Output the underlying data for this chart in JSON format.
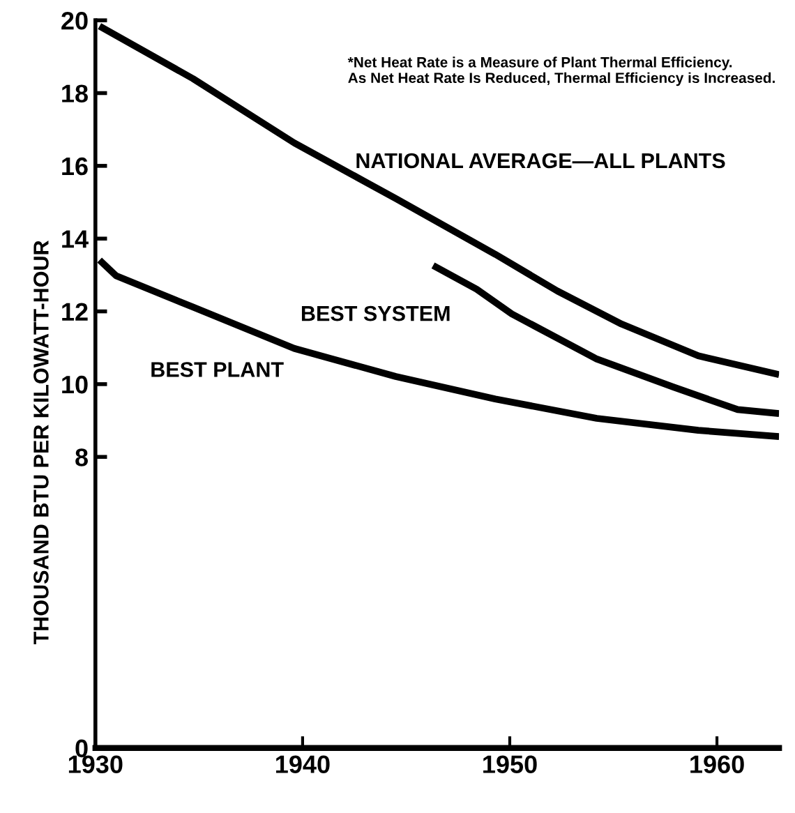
{
  "chart_data": {
    "type": "line",
    "ylabel": "THOUSAND BTU PER KILOWATT-HOUR",
    "annotations": [
      "*Net Heat Rate is a Measure of Plant Thermal Efficiency.\nAs Net Heat Rate Is Reduced, Thermal Efficiency is Increased."
    ],
    "series": [
      {
        "name": "NATIONAL AVERAGE—ALL PLANTS",
        "color": "#000000",
        "x": [
          1930.2,
          1934.7,
          1939.6,
          1944.5,
          1949.3,
          1952.3,
          1955.4,
          1959.1,
          1963.0
        ],
        "values": [
          19.84,
          18.4,
          16.63,
          15.1,
          13.57,
          12.56,
          11.65,
          10.78,
          10.26
        ]
      },
      {
        "name": "BEST SYSTEM",
        "color": "#000000",
        "x": [
          1946.3,
          1948.4,
          1950.1,
          1954.2,
          1957.9,
          1961.0,
          1963.0
        ],
        "values": [
          13.26,
          12.61,
          11.93,
          10.69,
          9.92,
          9.3,
          9.19
        ]
      },
      {
        "name": "BEST PLANT",
        "color": "#000000",
        "x": [
          1930.2,
          1931.0,
          1934.7,
          1939.6,
          1944.5,
          1949.3,
          1954.2,
          1959.1,
          1963.0
        ],
        "values": [
          13.41,
          12.98,
          12.12,
          10.98,
          10.21,
          9.59,
          9.06,
          8.73,
          8.56
        ]
      }
    ],
    "xlim": [
      1930,
      1963
    ],
    "xticks": [
      1930,
      1940,
      1950,
      1960
    ],
    "ylim": [
      0,
      20
    ],
    "yticks": [
      0,
      8,
      10,
      12,
      14,
      16,
      18,
      20
    ],
    "grid": false,
    "legend": false,
    "marker": "none",
    "line_style": "solid"
  }
}
